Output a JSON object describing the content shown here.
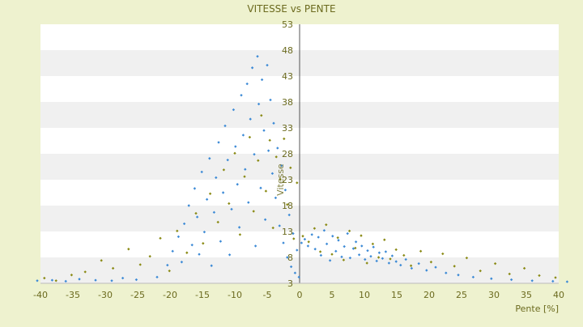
{
  "chart_data": {
    "type": "scatter",
    "title": "VITESSE vs PENTE",
    "xlabel": "Pente [%]",
    "ylabel": "Vitesse",
    "xlim": [
      -40,
      40
    ],
    "ylim": [
      3,
      53
    ],
    "x_ticks": [
      -40,
      -35,
      -30,
      -25,
      -20,
      -15,
      -10,
      -5,
      0,
      5,
      10,
      15,
      20,
      25,
      30,
      35,
      40
    ],
    "y_ticks": [
      3,
      8,
      13,
      18,
      23,
      28,
      33,
      38,
      43,
      48,
      53
    ],
    "grid": "horizontal bands",
    "legend": "none",
    "colors": {
      "background": "#eef2cf",
      "plot_band_light": "#ffffff",
      "plot_band_dark": "#f0f0f0",
      "axis_text": "#6b6a1e",
      "series_1": "#3c8ad6",
      "series_2": "#8a8a14"
    },
    "series": [
      {
        "points": [
          [
            -40.5,
            3.5
          ],
          [
            -38.2,
            3.6
          ],
          [
            -36.1,
            3.4
          ],
          [
            -34.0,
            3.8
          ],
          [
            -31.5,
            3.6
          ],
          [
            -29.0,
            3.5
          ],
          [
            -27.3,
            4.0
          ],
          [
            -25.2,
            3.7
          ],
          [
            -22.0,
            4.2
          ],
          [
            -20.4,
            6.5
          ],
          [
            -19.6,
            9.2
          ],
          [
            -18.7,
            12.0
          ],
          [
            -18.2,
            7.1
          ],
          [
            -17.8,
            14.5
          ],
          [
            -17.1,
            18.0
          ],
          [
            -16.6,
            10.4
          ],
          [
            -16.2,
            21.3
          ],
          [
            -15.8,
            15.8
          ],
          [
            -15.5,
            8.6
          ],
          [
            -15.1,
            24.5
          ],
          [
            -14.7,
            12.9
          ],
          [
            -14.3,
            19.2
          ],
          [
            -13.9,
            27.1
          ],
          [
            -13.6,
            6.4
          ],
          [
            -13.2,
            16.7
          ],
          [
            -12.9,
            23.4
          ],
          [
            -12.5,
            30.2
          ],
          [
            -12.2,
            11.1
          ],
          [
            -11.8,
            20.5
          ],
          [
            -11.5,
            33.4
          ],
          [
            -11.1,
            26.8
          ],
          [
            -10.8,
            8.5
          ],
          [
            -10.5,
            17.3
          ],
          [
            -10.2,
            36.5
          ],
          [
            -9.9,
            29.4
          ],
          [
            -9.6,
            22.1
          ],
          [
            -9.3,
            13.8
          ],
          [
            -9.0,
            39.3
          ],
          [
            -8.7,
            31.6
          ],
          [
            -8.4,
            25.0
          ],
          [
            -8.1,
            41.5
          ],
          [
            -7.9,
            18.6
          ],
          [
            -7.6,
            34.7
          ],
          [
            -7.3,
            44.6
          ],
          [
            -7.0,
            27.9
          ],
          [
            -6.8,
            10.2
          ],
          [
            -6.5,
            46.8
          ],
          [
            -6.3,
            37.6
          ],
          [
            -6.0,
            21.4
          ],
          [
            -5.8,
            42.3
          ],
          [
            -5.5,
            32.5
          ],
          [
            -5.3,
            15.3
          ],
          [
            -5.0,
            45.1
          ],
          [
            -4.8,
            28.6
          ],
          [
            -4.5,
            38.4
          ],
          [
            -4.2,
            24.2
          ],
          [
            -4.0,
            33.9
          ],
          [
            -3.7,
            19.5
          ],
          [
            -3.4,
            29.1
          ],
          [
            -3.1,
            14.1
          ],
          [
            -2.8,
            25.7
          ],
          [
            -2.5,
            10.8
          ],
          [
            -2.2,
            21.0
          ],
          [
            -1.9,
            8.0
          ],
          [
            -1.6,
            16.2
          ],
          [
            -1.3,
            6.2
          ],
          [
            -1.0,
            12.6
          ],
          [
            -0.7,
            5.0
          ],
          [
            -0.4,
            9.4
          ],
          [
            -0.1,
            4.2
          ],
          [
            0.3,
            10.8
          ],
          [
            0.8,
            11.5
          ],
          [
            1.3,
            10.2
          ],
          [
            1.9,
            12.4
          ],
          [
            2.4,
            9.6
          ],
          [
            2.9,
            11.9
          ],
          [
            3.3,
            8.4
          ],
          [
            3.8,
            13.2
          ],
          [
            4.2,
            10.6
          ],
          [
            4.7,
            7.4
          ],
          [
            5.1,
            12.1
          ],
          [
            5.6,
            9.2
          ],
          [
            6.0,
            11.3
          ],
          [
            6.5,
            8.1
          ],
          [
            6.9,
            10.1
          ],
          [
            7.4,
            12.6
          ],
          [
            7.8,
            7.9
          ],
          [
            8.3,
            9.7
          ],
          [
            8.7,
            11.0
          ],
          [
            9.2,
            8.5
          ],
          [
            9.6,
            10.2
          ],
          [
            10.1,
            7.6
          ],
          [
            10.5,
            9.3
          ],
          [
            11.0,
            8.2
          ],
          [
            11.4,
            10.0
          ],
          [
            11.9,
            7.3
          ],
          [
            12.3,
            8.9
          ],
          [
            12.8,
            7.8
          ],
          [
            13.3,
            9.1
          ],
          [
            13.8,
            6.9
          ],
          [
            14.3,
            8.3
          ],
          [
            14.9,
            7.2
          ],
          [
            15.6,
            6.5
          ],
          [
            16.4,
            7.6
          ],
          [
            17.3,
            5.9
          ],
          [
            18.4,
            6.8
          ],
          [
            19.6,
            5.5
          ],
          [
            21.0,
            6.1
          ],
          [
            22.6,
            5.0
          ],
          [
            24.5,
            4.6
          ],
          [
            26.8,
            4.2
          ],
          [
            29.6,
            3.9
          ],
          [
            32.7,
            3.7
          ],
          [
            35.9,
            3.5
          ],
          [
            39.1,
            3.4
          ],
          [
            41.3,
            3.3
          ]
        ]
      },
      {
        "points": [
          [
            -39.4,
            4.0
          ],
          [
            -37.6,
            3.5
          ],
          [
            -35.2,
            4.6
          ],
          [
            -33.1,
            5.2
          ],
          [
            -30.6,
            7.4
          ],
          [
            -28.8,
            5.9
          ],
          [
            -26.4,
            9.6
          ],
          [
            -24.6,
            6.6
          ],
          [
            -23.1,
            8.2
          ],
          [
            -21.5,
            11.7
          ],
          [
            -20.1,
            5.4
          ],
          [
            -18.9,
            13.1
          ],
          [
            -17.4,
            8.9
          ],
          [
            -16.0,
            16.5
          ],
          [
            -14.9,
            10.7
          ],
          [
            -13.8,
            20.3
          ],
          [
            -12.6,
            14.8
          ],
          [
            -11.7,
            24.9
          ],
          [
            -10.9,
            18.4
          ],
          [
            -10.0,
            28.1
          ],
          [
            -9.2,
            12.4
          ],
          [
            -8.5,
            23.6
          ],
          [
            -7.7,
            31.2
          ],
          [
            -7.1,
            16.9
          ],
          [
            -6.4,
            26.7
          ],
          [
            -5.9,
            35.4
          ],
          [
            -5.2,
            20.8
          ],
          [
            -4.6,
            30.6
          ],
          [
            -4.1,
            13.7
          ],
          [
            -3.6,
            27.4
          ],
          [
            -3.0,
            23.1
          ],
          [
            -2.4,
            30.9
          ],
          [
            -1.9,
            18.2
          ],
          [
            -1.4,
            25.3
          ],
          [
            -0.9,
            11.6
          ],
          [
            -0.4,
            22.4
          ],
          [
            0.5,
            12.1
          ],
          [
            1.4,
            11.0
          ],
          [
            2.3,
            13.6
          ],
          [
            3.2,
            9.1
          ],
          [
            4.1,
            14.3
          ],
          [
            5.0,
            8.6
          ],
          [
            5.9,
            11.8
          ],
          [
            6.8,
            7.5
          ],
          [
            7.7,
            13.1
          ],
          [
            8.6,
            9.8
          ],
          [
            9.5,
            12.2
          ],
          [
            10.4,
            6.9
          ],
          [
            11.3,
            10.6
          ],
          [
            12.2,
            8.0
          ],
          [
            13.1,
            11.4
          ],
          [
            14.0,
            7.7
          ],
          [
            14.9,
            9.5
          ],
          [
            16.1,
            8.4
          ],
          [
            17.2,
            6.4
          ],
          [
            18.7,
            9.2
          ],
          [
            20.3,
            7.1
          ],
          [
            22.1,
            8.7
          ],
          [
            23.9,
            6.3
          ],
          [
            25.8,
            7.9
          ],
          [
            27.9,
            5.4
          ],
          [
            30.2,
            6.8
          ],
          [
            32.4,
            4.8
          ],
          [
            34.7,
            5.9
          ],
          [
            37.0,
            4.5
          ],
          [
            39.5,
            4.1
          ]
        ]
      }
    ]
  }
}
